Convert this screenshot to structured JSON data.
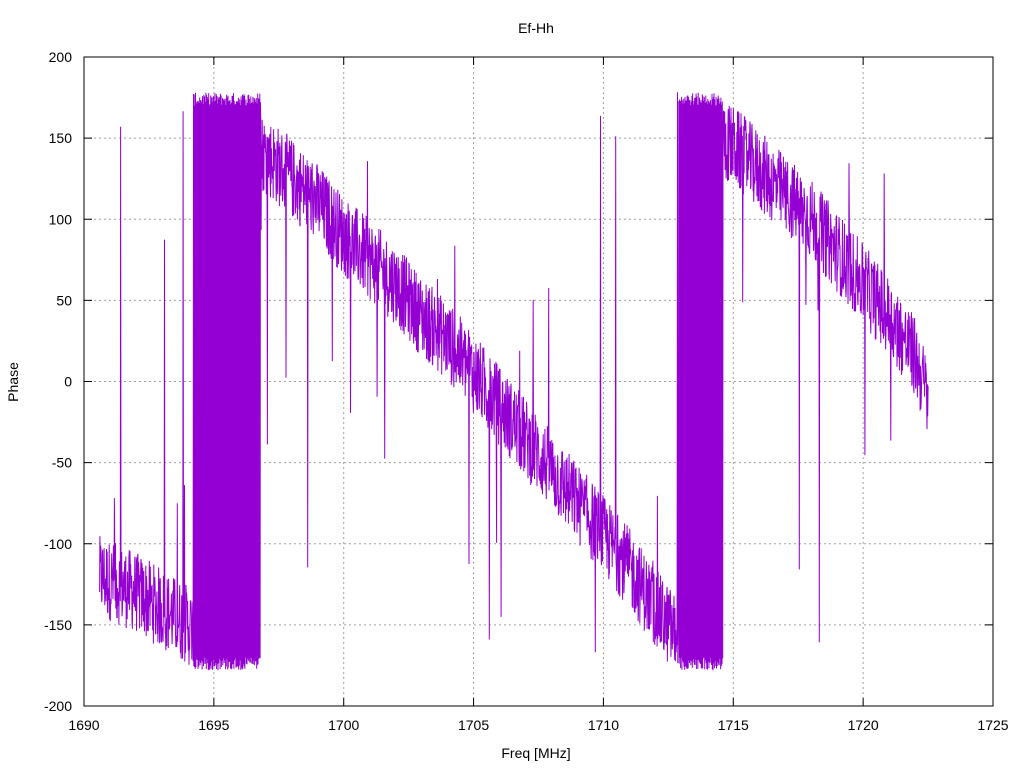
{
  "chart_data": {
    "type": "line",
    "title": "Ef-Hh",
    "xlabel": "Freq [MHz]",
    "ylabel": "Phase",
    "xlim": [
      1690,
      1725
    ],
    "ylim": [
      -200,
      200
    ],
    "x_ticks": [
      "1690",
      "1695",
      "1700",
      "1705",
      "1710",
      "1715",
      "1720",
      "1725"
    ],
    "y_ticks": [
      "-200",
      "-150",
      "-100",
      "-50",
      "0",
      "50",
      "100",
      "150",
      "200"
    ],
    "grid": true,
    "legend": "none",
    "series_color": "#9400d3",
    "trend_points": [
      {
        "x": 1690.6,
        "y": -120
      },
      {
        "x": 1692.0,
        "y": -130
      },
      {
        "x": 1693.0,
        "y": -140
      },
      {
        "x": 1694.0,
        "y": -150
      },
      {
        "x": 1694.5,
        "y": -160
      },
      {
        "x": 1695.0,
        "y": 160
      },
      {
        "x": 1696.0,
        "y": 150
      },
      {
        "x": 1697.0,
        "y": 140
      },
      {
        "x": 1698.0,
        "y": 125
      },
      {
        "x": 1699.0,
        "y": 110
      },
      {
        "x": 1700.0,
        "y": 90
      },
      {
        "x": 1701.0,
        "y": 75
      },
      {
        "x": 1702.0,
        "y": 60
      },
      {
        "x": 1703.0,
        "y": 40
      },
      {
        "x": 1704.0,
        "y": 25
      },
      {
        "x": 1705.0,
        "y": 5
      },
      {
        "x": 1706.0,
        "y": -15
      },
      {
        "x": 1707.0,
        "y": -35
      },
      {
        "x": 1708.0,
        "y": -55
      },
      {
        "x": 1709.0,
        "y": -75
      },
      {
        "x": 1710.0,
        "y": -95
      },
      {
        "x": 1711.0,
        "y": -115
      },
      {
        "x": 1712.0,
        "y": -140
      },
      {
        "x": 1713.0,
        "y": -160
      },
      {
        "x": 1713.5,
        "y": 160
      },
      {
        "x": 1715.0,
        "y": 145
      },
      {
        "x": 1716.0,
        "y": 130
      },
      {
        "x": 1717.0,
        "y": 115
      },
      {
        "x": 1718.0,
        "y": 100
      },
      {
        "x": 1719.0,
        "y": 80
      },
      {
        "x": 1720.0,
        "y": 60
      },
      {
        "x": 1721.0,
        "y": 40
      },
      {
        "x": 1722.0,
        "y": 15
      },
      {
        "x": 1722.5,
        "y": -10
      }
    ],
    "full_wrap_bands": [
      {
        "x_start": 1694.2,
        "x_end": 1696.8
      },
      {
        "x_start": 1712.9,
        "x_end": 1714.6
      }
    ]
  }
}
